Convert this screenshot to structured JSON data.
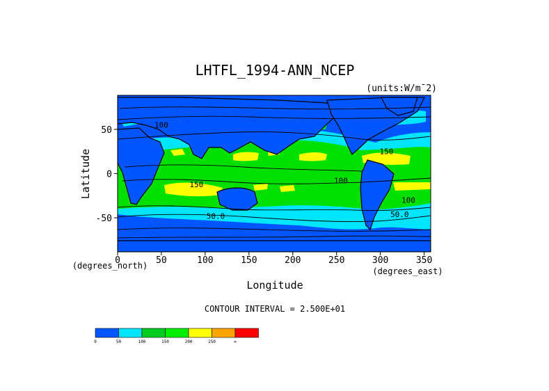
{
  "chart_data": {
    "type": "heatmap",
    "title": "LHTFL_1994-ANN_NCEP",
    "units_label": "(units:W/m¯2)",
    "xlabel": "Longitude",
    "ylabel": "Latitude",
    "x_unit_label": "(degrees_east)",
    "y_unit_label": "(degrees_north)",
    "xlim": [
      0,
      357.5
    ],
    "ylim": [
      -88.5,
      88.5
    ],
    "x_ticks": [
      0,
      50,
      100,
      150,
      200,
      250,
      300,
      350
    ],
    "y_ticks": [
      50,
      0,
      -50
    ],
    "contour_interval_text": "CONTOUR INTERVAL = 2.500E+01",
    "contour_labels": [
      {
        "text": "150",
        "lon": 90,
        "lat": -12
      },
      {
        "text": "100",
        "lon": 50,
        "lat": 55
      },
      {
        "text": "50.0",
        "lon": 112,
        "lat": -48
      },
      {
        "text": "100",
        "lon": 255,
        "lat": -8
      },
      {
        "text": "150",
        "lon": 307,
        "lat": 25
      },
      {
        "text": "100",
        "lon": 332,
        "lat": -30
      },
      {
        "text": "50.0",
        "lon": 322,
        "lat": -46
      }
    ],
    "colorbar": {
      "levels": [
        "0",
        "50",
        "100",
        "150",
        "200",
        "250",
        "∞"
      ],
      "colors": [
        "#0055ff",
        "#00e5ff",
        "#00cc1f",
        "#00ee00",
        "#ffff00",
        "#ffa500",
        "#ff0000"
      ]
    },
    "colors": {
      "band_0_50": "#0055ff",
      "band_50_100": "#00e5ff",
      "band_100_150": "#00e000",
      "band_150_200": "#ffff00",
      "land": "#0055ff"
    }
  }
}
